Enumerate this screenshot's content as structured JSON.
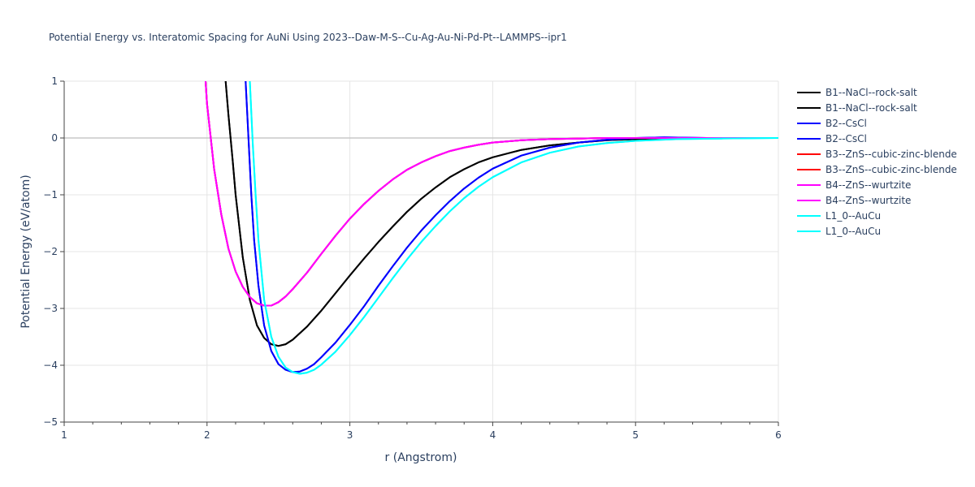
{
  "chart_data": {
    "type": "line",
    "title": "Potential Energy vs. Interatomic Spacing for AuNi Using 2023--Daw-M-S--Cu-Ag-Au-Ni-Pd-Pt--LAMMPS--ipr1",
    "xlabel": "r (Angstrom)",
    "ylabel": "Potential Energy (eV/atom)",
    "xlim": [
      1,
      6
    ],
    "ylim": [
      -5,
      1
    ],
    "x_ticks": [
      "1",
      "2",
      "3",
      "4",
      "5",
      "6"
    ],
    "y_ticks": [
      "1",
      "0",
      "−1",
      "−2",
      "−3",
      "−4",
      "−5"
    ],
    "grid": true,
    "legend_position": "right",
    "series": [
      {
        "name": "B1--NaCl--rock-salt",
        "color": "#000000",
        "x": [
          2.13,
          2.15,
          2.18,
          2.2,
          2.25,
          2.3,
          2.35,
          2.4,
          2.45,
          2.5,
          2.55,
          2.6,
          2.7,
          2.8,
          2.9,
          3.0,
          3.1,
          3.2,
          3.3,
          3.4,
          3.5,
          3.6,
          3.7,
          3.8,
          3.9,
          4.0,
          4.2,
          4.4,
          4.6,
          4.8,
          5.0,
          5.3,
          5.6,
          6.0
        ],
        "y": [
          1.0,
          0.4,
          -0.4,
          -1.0,
          -2.1,
          -2.85,
          -3.3,
          -3.52,
          -3.63,
          -3.66,
          -3.63,
          -3.55,
          -3.32,
          -3.04,
          -2.73,
          -2.42,
          -2.12,
          -1.83,
          -1.56,
          -1.3,
          -1.07,
          -0.87,
          -0.69,
          -0.55,
          -0.43,
          -0.34,
          -0.21,
          -0.13,
          -0.08,
          -0.04,
          -0.02,
          0.0,
          0.0,
          0.0
        ]
      },
      {
        "name": "B1--NaCl--rock-salt",
        "color": "#000000",
        "x": [
          2.13,
          2.15,
          2.18,
          2.2,
          2.25,
          2.3,
          2.35,
          2.4,
          2.45,
          2.5,
          2.55,
          2.6,
          2.7,
          2.8,
          2.9,
          3.0,
          3.1,
          3.2,
          3.3,
          3.4,
          3.5,
          3.6,
          3.7,
          3.8,
          3.9,
          4.0,
          4.2,
          4.4,
          4.6,
          4.8,
          5.0,
          5.3,
          5.6,
          6.0
        ],
        "y": [
          1.0,
          0.4,
          -0.4,
          -1.0,
          -2.1,
          -2.85,
          -3.3,
          -3.52,
          -3.63,
          -3.66,
          -3.63,
          -3.55,
          -3.32,
          -3.04,
          -2.73,
          -2.42,
          -2.12,
          -1.83,
          -1.56,
          -1.3,
          -1.07,
          -0.87,
          -0.69,
          -0.55,
          -0.43,
          -0.34,
          -0.21,
          -0.13,
          -0.08,
          -0.04,
          -0.02,
          0.0,
          0.0,
          0.0
        ]
      },
      {
        "name": "B2--CsCl",
        "color": "#0000ff",
        "x": [
          2.27,
          2.29,
          2.31,
          2.33,
          2.36,
          2.4,
          2.45,
          2.5,
          2.55,
          2.6,
          2.65,
          2.7,
          2.75,
          2.8,
          2.9,
          3.0,
          3.1,
          3.2,
          3.3,
          3.4,
          3.5,
          3.6,
          3.7,
          3.8,
          3.9,
          4.0,
          4.2,
          4.4,
          4.6,
          4.8,
          5.0,
          5.2,
          5.5,
          6.0
        ],
        "y": [
          1.0,
          0.0,
          -1.0,
          -1.8,
          -2.6,
          -3.3,
          -3.75,
          -3.98,
          -4.08,
          -4.12,
          -4.11,
          -4.06,
          -3.98,
          -3.86,
          -3.6,
          -3.29,
          -2.96,
          -2.6,
          -2.26,
          -1.93,
          -1.63,
          -1.36,
          -1.11,
          -0.89,
          -0.7,
          -0.54,
          -0.31,
          -0.17,
          -0.08,
          -0.03,
          0.0,
          0.01,
          0.0,
          0.0
        ]
      },
      {
        "name": "B2--CsCl",
        "color": "#0000ff",
        "x": [
          2.27,
          2.29,
          2.31,
          2.33,
          2.36,
          2.4,
          2.45,
          2.5,
          2.55,
          2.6,
          2.65,
          2.7,
          2.75,
          2.8,
          2.9,
          3.0,
          3.1,
          3.2,
          3.3,
          3.4,
          3.5,
          3.6,
          3.7,
          3.8,
          3.9,
          4.0,
          4.2,
          4.4,
          4.6,
          4.8,
          5.0,
          5.2,
          5.5,
          6.0
        ],
        "y": [
          1.0,
          0.0,
          -1.0,
          -1.8,
          -2.6,
          -3.3,
          -3.75,
          -3.98,
          -4.08,
          -4.12,
          -4.11,
          -4.06,
          -3.98,
          -3.86,
          -3.6,
          -3.29,
          -2.96,
          -2.6,
          -2.26,
          -1.93,
          -1.63,
          -1.36,
          -1.11,
          -0.89,
          -0.7,
          -0.54,
          -0.31,
          -0.17,
          -0.08,
          -0.03,
          0.0,
          0.01,
          0.0,
          0.0
        ]
      },
      {
        "name": "B3--ZnS--cubic-zinc-blende",
        "color": "#ff0000",
        "x": [
          1.99,
          2.0,
          2.05,
          2.1,
          2.15,
          2.2,
          2.25,
          2.3,
          2.35,
          2.4,
          2.45,
          2.5,
          2.55,
          2.6,
          2.7,
          2.8,
          2.9,
          3.0,
          3.1,
          3.2,
          3.3,
          3.4,
          3.5,
          3.6,
          3.7,
          3.8,
          3.9,
          4.0,
          4.2,
          4.4,
          4.6,
          4.8,
          5.0,
          5.3,
          5.6,
          6.0
        ],
        "y": [
          1.0,
          0.6,
          -0.55,
          -1.35,
          -1.95,
          -2.35,
          -2.62,
          -2.8,
          -2.91,
          -2.95,
          -2.95,
          -2.89,
          -2.79,
          -2.66,
          -2.37,
          -2.04,
          -1.72,
          -1.42,
          -1.16,
          -0.93,
          -0.73,
          -0.56,
          -0.43,
          -0.32,
          -0.23,
          -0.17,
          -0.12,
          -0.08,
          -0.04,
          -0.02,
          -0.01,
          0.0,
          0.0,
          0.0,
          0.0,
          0.0
        ]
      },
      {
        "name": "B3--ZnS--cubic-zinc-blende",
        "color": "#ff0000",
        "x": [
          1.99,
          2.0,
          2.05,
          2.1,
          2.15,
          2.2,
          2.25,
          2.3,
          2.35,
          2.4,
          2.45,
          2.5,
          2.55,
          2.6,
          2.7,
          2.8,
          2.9,
          3.0,
          3.1,
          3.2,
          3.3,
          3.4,
          3.5,
          3.6,
          3.7,
          3.8,
          3.9,
          4.0,
          4.2,
          4.4,
          4.6,
          4.8,
          5.0,
          5.3,
          5.6,
          6.0
        ],
        "y": [
          1.0,
          0.6,
          -0.55,
          -1.35,
          -1.95,
          -2.35,
          -2.62,
          -2.8,
          -2.91,
          -2.95,
          -2.95,
          -2.89,
          -2.79,
          -2.66,
          -2.37,
          -2.04,
          -1.72,
          -1.42,
          -1.16,
          -0.93,
          -0.73,
          -0.56,
          -0.43,
          -0.32,
          -0.23,
          -0.17,
          -0.12,
          -0.08,
          -0.04,
          -0.02,
          -0.01,
          0.0,
          0.0,
          0.0,
          0.0,
          0.0
        ]
      },
      {
        "name": "B4--ZnS--wurtzite",
        "color": "#ff00ff",
        "x": [
          1.99,
          2.0,
          2.05,
          2.1,
          2.15,
          2.2,
          2.25,
          2.3,
          2.35,
          2.4,
          2.45,
          2.5,
          2.55,
          2.6,
          2.7,
          2.8,
          2.9,
          3.0,
          3.1,
          3.2,
          3.3,
          3.4,
          3.5,
          3.6,
          3.7,
          3.8,
          3.9,
          4.0,
          4.2,
          4.4,
          4.6,
          4.8,
          5.0,
          5.3,
          5.6,
          6.0
        ],
        "y": [
          1.0,
          0.6,
          -0.55,
          -1.35,
          -1.95,
          -2.35,
          -2.62,
          -2.8,
          -2.91,
          -2.95,
          -2.95,
          -2.89,
          -2.79,
          -2.66,
          -2.37,
          -2.04,
          -1.72,
          -1.42,
          -1.16,
          -0.93,
          -0.73,
          -0.56,
          -0.43,
          -0.32,
          -0.23,
          -0.17,
          -0.12,
          -0.08,
          -0.04,
          -0.02,
          -0.01,
          0.0,
          0.0,
          0.0,
          0.0,
          0.0
        ]
      },
      {
        "name": "B4--ZnS--wurtzite",
        "color": "#ff00ff",
        "x": [
          1.99,
          2.0,
          2.05,
          2.1,
          2.15,
          2.2,
          2.25,
          2.3,
          2.35,
          2.4,
          2.45,
          2.5,
          2.55,
          2.6,
          2.7,
          2.8,
          2.9,
          3.0,
          3.1,
          3.2,
          3.3,
          3.4,
          3.5,
          3.6,
          3.7,
          3.8,
          3.9,
          4.0,
          4.2,
          4.4,
          4.6,
          4.8,
          5.0,
          5.3,
          5.6,
          6.0
        ],
        "y": [
          1.0,
          0.6,
          -0.55,
          -1.35,
          -1.95,
          -2.35,
          -2.62,
          -2.8,
          -2.91,
          -2.95,
          -2.95,
          -2.89,
          -2.79,
          -2.66,
          -2.37,
          -2.04,
          -1.72,
          -1.42,
          -1.16,
          -0.93,
          -0.73,
          -0.56,
          -0.43,
          -0.32,
          -0.23,
          -0.17,
          -0.12,
          -0.08,
          -0.04,
          -0.02,
          -0.01,
          0.0,
          0.0,
          0.0,
          0.0,
          0.0
        ]
      },
      {
        "name": "L1_0--AuCu",
        "color": "#00ffff",
        "x": [
          2.3,
          2.32,
          2.34,
          2.36,
          2.4,
          2.45,
          2.5,
          2.55,
          2.6,
          2.65,
          2.7,
          2.75,
          2.8,
          2.9,
          3.0,
          3.1,
          3.2,
          3.3,
          3.4,
          3.5,
          3.6,
          3.7,
          3.8,
          3.9,
          4.0,
          4.2,
          4.4,
          4.6,
          4.8,
          5.0,
          5.3,
          5.6,
          6.0
        ],
        "y": [
          1.0,
          -0.1,
          -1.0,
          -1.8,
          -2.85,
          -3.5,
          -3.85,
          -4.04,
          -4.12,
          -4.15,
          -4.13,
          -4.08,
          -3.99,
          -3.76,
          -3.47,
          -3.15,
          -2.81,
          -2.47,
          -2.14,
          -1.83,
          -1.55,
          -1.29,
          -1.06,
          -0.86,
          -0.69,
          -0.43,
          -0.26,
          -0.15,
          -0.09,
          -0.05,
          -0.02,
          -0.01,
          0.0
        ]
      },
      {
        "name": "L1_0--AuCu",
        "color": "#00ffff",
        "x": [
          2.3,
          2.32,
          2.34,
          2.36,
          2.4,
          2.45,
          2.5,
          2.55,
          2.6,
          2.65,
          2.7,
          2.75,
          2.8,
          2.9,
          3.0,
          3.1,
          3.2,
          3.3,
          3.4,
          3.5,
          3.6,
          3.7,
          3.8,
          3.9,
          4.0,
          4.2,
          4.4,
          4.6,
          4.8,
          5.0,
          5.3,
          5.6,
          6.0
        ],
        "y": [
          1.0,
          -0.1,
          -1.0,
          -1.8,
          -2.85,
          -3.5,
          -3.85,
          -4.04,
          -4.12,
          -4.15,
          -4.13,
          -4.08,
          -3.99,
          -3.76,
          -3.47,
          -3.15,
          -2.81,
          -2.47,
          -2.14,
          -1.83,
          -1.55,
          -1.29,
          -1.06,
          -0.86,
          -0.69,
          -0.43,
          -0.26,
          -0.15,
          -0.09,
          -0.05,
          -0.02,
          -0.01,
          0.0
        ]
      }
    ]
  }
}
